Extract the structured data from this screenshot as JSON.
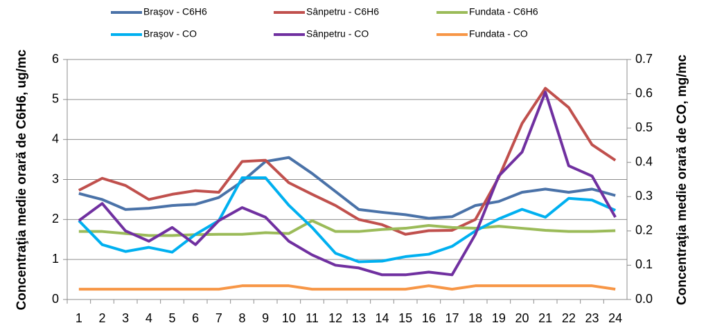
{
  "chart_data": {
    "type": "line",
    "ylabel": "Concentraţia medie orară de C6H6, ug/mc",
    "y2label": "Concentraţia medie orară de CO, mg/mc",
    "categories": [
      "1",
      "2",
      "3",
      "4",
      "5",
      "6",
      "7",
      "8",
      "9",
      "10",
      "11",
      "12",
      "13",
      "14",
      "15",
      "16",
      "17",
      "18",
      "19",
      "20",
      "21",
      "22",
      "23",
      "24"
    ],
    "ylim": [
      0,
      6
    ],
    "yticks": [
      0,
      1,
      2,
      3,
      4,
      5,
      6
    ],
    "y2lim": [
      0,
      0.7
    ],
    "y2ticks": [
      {
        "value": 0,
        "label": "0.0"
      },
      0.1,
      0.2,
      0.3,
      0.4,
      0.5,
      0.6,
      0.7
    ],
    "grid": true,
    "series": [
      {
        "name": "Braşov - C6H6",
        "color": "#4a72a8",
        "values": [
          2.65,
          2.5,
          2.25,
          2.28,
          2.35,
          2.38,
          2.55,
          2.95,
          3.45,
          3.55,
          3.15,
          2.7,
          2.25,
          2.18,
          2.12,
          2.03,
          2.07,
          2.35,
          2.45,
          2.68,
          2.76,
          2.68,
          2.76,
          2.6
        ]
      },
      {
        "name": "Sânpetru - C6H6",
        "color": "#c0504d",
        "values": [
          2.73,
          3.03,
          2.85,
          2.5,
          2.63,
          2.72,
          2.68,
          3.45,
          3.48,
          2.92,
          2.63,
          2.35,
          2.0,
          1.87,
          1.63,
          1.72,
          1.73,
          2.0,
          3.05,
          4.4,
          5.28,
          4.8,
          3.87,
          3.48
        ]
      },
      {
        "name": "Fundata - C6H6",
        "color": "#9bbb59",
        "values": [
          1.7,
          1.7,
          1.65,
          1.6,
          1.6,
          1.62,
          1.63,
          1.63,
          1.67,
          1.65,
          1.97,
          1.7,
          1.7,
          1.75,
          1.78,
          1.85,
          1.8,
          1.78,
          1.83,
          1.78,
          1.73,
          1.7,
          1.7,
          1.72
        ]
      },
      {
        "name": "Braşov - CO",
        "color": "#00b0f0",
        "axis": "y2",
        "values": [
          0.23,
          0.16,
          0.14,
          0.152,
          0.138,
          0.19,
          0.23,
          0.355,
          0.355,
          0.275,
          0.21,
          0.135,
          0.11,
          0.112,
          0.125,
          0.132,
          0.155,
          0.2,
          0.235,
          0.263,
          0.24,
          0.295,
          0.29,
          0.26
        ]
      },
      {
        "name": "Sânpetru - CO",
        "color": "#7030a0",
        "axis": "y2",
        "values": [
          0.23,
          0.28,
          0.2,
          0.17,
          0.21,
          0.16,
          0.23,
          0.268,
          0.24,
          0.17,
          0.13,
          0.1,
          0.092,
          0.072,
          0.072,
          0.08,
          0.072,
          0.19,
          0.36,
          0.43,
          0.605,
          0.39,
          0.36,
          0.24
        ]
      },
      {
        "name": "Fundata - CO",
        "color": "#f79646",
        "axis": "y2",
        "values": [
          0.03,
          0.03,
          0.03,
          0.03,
          0.03,
          0.03,
          0.03,
          0.04,
          0.04,
          0.04,
          0.03,
          0.03,
          0.03,
          0.03,
          0.03,
          0.04,
          0.03,
          0.04,
          0.04,
          0.04,
          0.04,
          0.04,
          0.04,
          0.03
        ]
      }
    ]
  }
}
